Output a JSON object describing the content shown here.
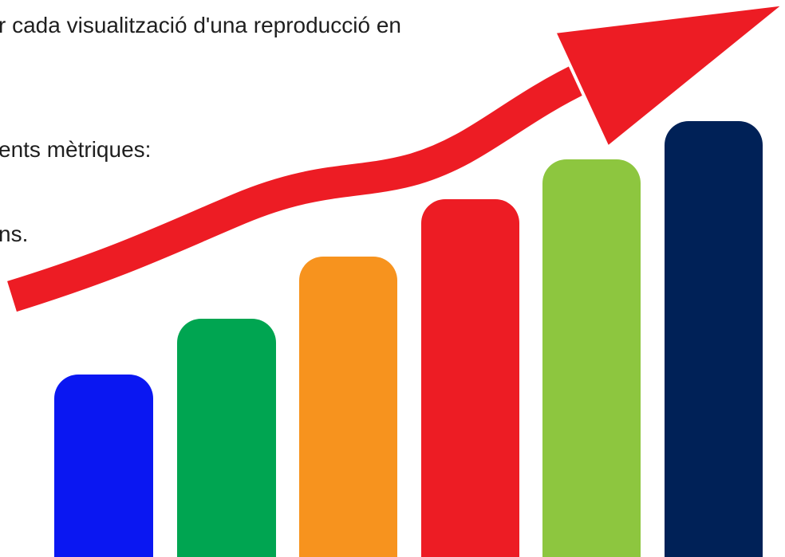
{
  "text_lines": [
    "r cada visualització d'una reproducció en",
    "ents mètriques:",
    "ns."
  ]
}
